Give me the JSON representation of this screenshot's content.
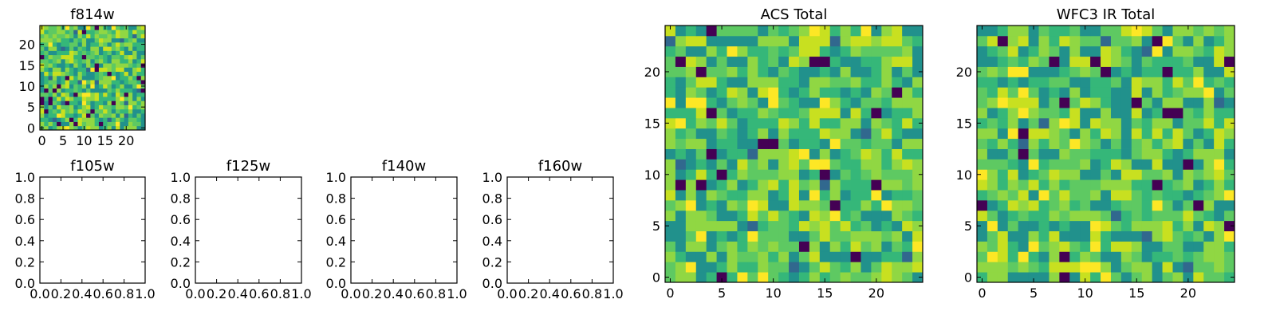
{
  "chart_data": [
    {
      "type": "heatmap",
      "title": "f814w",
      "xlabel": "",
      "ylabel": "",
      "grid_size": 25,
      "xlim": [
        -0.5,
        24.5
      ],
      "ylim": [
        -0.5,
        24.5
      ],
      "xticks": [
        0,
        5,
        10,
        15,
        20
      ],
      "yticks": [
        0,
        5,
        10,
        15,
        20
      ],
      "colormap": "viridis",
      "seed": 814
    },
    {
      "type": "heatmap",
      "title": "f105w",
      "xlabel": "",
      "ylabel": "",
      "xlim": [
        0.0,
        1.0
      ],
      "ylim": [
        0.0,
        1.0
      ],
      "xticks": [
        "0.0",
        "0.2",
        "0.4",
        "0.6",
        "0.8",
        "1.0"
      ],
      "yticks": [
        "0.0",
        "0.2",
        "0.4",
        "0.6",
        "0.8",
        "1.0"
      ],
      "values": []
    },
    {
      "type": "heatmap",
      "title": "f125w",
      "xlabel": "",
      "ylabel": "",
      "xlim": [
        0.0,
        1.0
      ],
      "ylim": [
        0.0,
        1.0
      ],
      "xticks": [
        "0.0",
        "0.2",
        "0.4",
        "0.6",
        "0.8",
        "1.0"
      ],
      "yticks": [
        "0.0",
        "0.2",
        "0.4",
        "0.6",
        "0.8",
        "1.0"
      ],
      "values": []
    },
    {
      "type": "heatmap",
      "title": "f140w",
      "xlabel": "",
      "ylabel": "",
      "xlim": [
        0.0,
        1.0
      ],
      "ylim": [
        0.0,
        1.0
      ],
      "xticks": [
        "0.0",
        "0.2",
        "0.4",
        "0.6",
        "0.8",
        "1.0"
      ],
      "yticks": [
        "0.0",
        "0.2",
        "0.4",
        "0.6",
        "0.8",
        "1.0"
      ],
      "values": []
    },
    {
      "type": "heatmap",
      "title": "f160w",
      "xlabel": "",
      "ylabel": "",
      "xlim": [
        0.0,
        1.0
      ],
      "ylim": [
        0.0,
        1.0
      ],
      "xticks": [
        "0.0",
        "0.2",
        "0.4",
        "0.6",
        "0.8",
        "1.0"
      ],
      "yticks": [
        "0.0",
        "0.2",
        "0.4",
        "0.6",
        "0.8",
        "1.0"
      ],
      "values": []
    },
    {
      "type": "heatmap",
      "title": "ACS Total",
      "xlabel": "",
      "ylabel": "",
      "grid_size": 25,
      "xlim": [
        -0.5,
        24.5
      ],
      "ylim": [
        -0.5,
        24.5
      ],
      "xticks": [
        0,
        5,
        10,
        15,
        20
      ],
      "yticks": [
        0,
        5,
        10,
        15,
        20
      ],
      "colormap": "viridis",
      "seed": 1001
    },
    {
      "type": "heatmap",
      "title": "WFC3 IR Total",
      "xlabel": "",
      "ylabel": "",
      "grid_size": 25,
      "xlim": [
        -0.5,
        24.5
      ],
      "ylim": [
        -0.5,
        24.5
      ],
      "xticks": [
        0,
        5,
        10,
        15,
        20
      ],
      "yticks": [
        0,
        5,
        10,
        15,
        20
      ],
      "colormap": "viridis",
      "seed": 3003
    }
  ],
  "colors": {
    "viridis": [
      "#440154",
      "#31688e",
      "#21918c",
      "#35b779",
      "#5ec962",
      "#90d743",
      "#c8e020",
      "#fde725"
    ]
  }
}
